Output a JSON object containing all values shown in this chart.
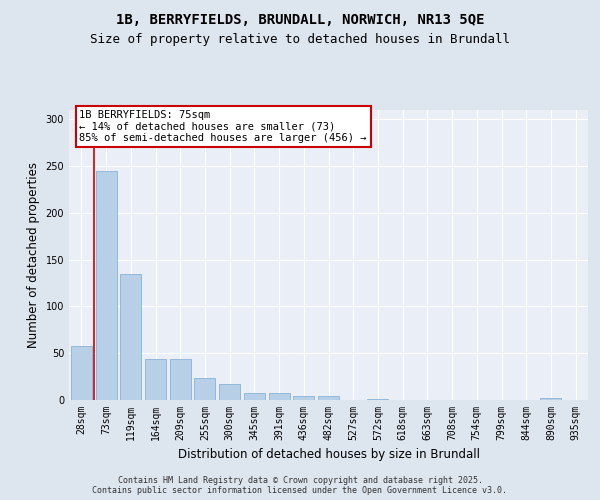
{
  "title_line1": "1B, BERRYFIELDS, BRUNDALL, NORWICH, NR13 5QE",
  "title_line2": "Size of property relative to detached houses in Brundall",
  "xlabel": "Distribution of detached houses by size in Brundall",
  "ylabel": "Number of detached properties",
  "categories": [
    "28sqm",
    "73sqm",
    "119sqm",
    "164sqm",
    "209sqm",
    "255sqm",
    "300sqm",
    "345sqm",
    "391sqm",
    "436sqm",
    "482sqm",
    "527sqm",
    "572sqm",
    "618sqm",
    "663sqm",
    "708sqm",
    "754sqm",
    "799sqm",
    "844sqm",
    "890sqm",
    "935sqm"
  ],
  "values": [
    58,
    245,
    135,
    44,
    44,
    24,
    17,
    7,
    7,
    4,
    4,
    0,
    1,
    0,
    0,
    0,
    0,
    0,
    0,
    2,
    0
  ],
  "bar_color": "#b8cfe8",
  "bar_edge_color": "#7aaad0",
  "vline_x": 0.5,
  "vline_color": "#cc0000",
  "annotation_text": "1B BERRYFIELDS: 75sqm\n← 14% of detached houses are smaller (73)\n85% of semi-detached houses are larger (456) →",
  "annotation_box_color": "#ffffff",
  "annotation_box_edge_color": "#cc0000",
  "ylim": [
    0,
    310
  ],
  "yticks": [
    0,
    50,
    100,
    150,
    200,
    250,
    300
  ],
  "background_color": "#dde5ef",
  "plot_bg_color": "#eaeff7",
  "grid_color": "#ffffff",
  "footer_text": "Contains HM Land Registry data © Crown copyright and database right 2025.\nContains public sector information licensed under the Open Government Licence v3.0.",
  "title_fontsize": 10,
  "subtitle_fontsize": 9,
  "axis_label_fontsize": 8.5,
  "tick_fontsize": 7,
  "annotation_fontsize": 7.5,
  "footer_fontsize": 6
}
